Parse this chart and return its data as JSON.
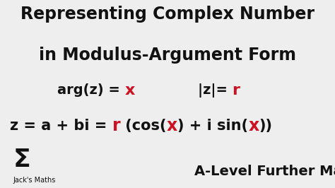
{
  "background_color": "#eeeeee",
  "title_line1": "Representing Complex Number",
  "title_line2": "in Modulus-Argument Form",
  "title_color": "#111111",
  "title_fontsize": 17,
  "title_fontweight": "bold",
  "eq_color_black": "#111111",
  "eq_color_red": "#cc1122",
  "eq_fontsize": 14,
  "main_eq_fontsize": 15,
  "sigma_text": "Σ",
  "jacks_text": "Jack's Maths",
  "alevel_text": "A-Level Further Maths",
  "alevel_fontsize": 14,
  "sigma_fontsize": 26,
  "jacks_fontsize": 7,
  "fig_width": 4.74,
  "fig_height": 2.66,
  "dpi": 100
}
